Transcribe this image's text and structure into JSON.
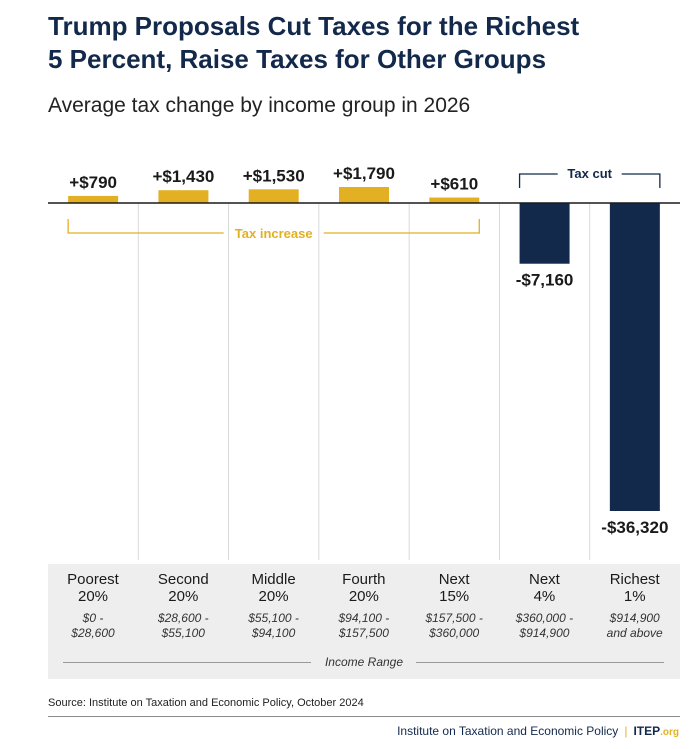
{
  "title": "Trump Proposals Cut Taxes for the Richest\n5 Percent, Raise Taxes for Other Groups",
  "subtitle": "Average tax change by income group in 2026",
  "chart_data": {
    "type": "bar",
    "categories": [
      "Poorest 20%",
      "Second 20%",
      "Middle 20%",
      "Fourth 20%",
      "Next 15%",
      "Next 4%",
      "Richest 1%"
    ],
    "values": [
      790,
      1430,
      1530,
      1790,
      610,
      -7160,
      -36320
    ],
    "data_labels": [
      "+$790",
      "+$1,430",
      "+$1,530",
      "+$1,790",
      "+$610",
      "-$7,160",
      "-$36,320"
    ],
    "annotations": {
      "increase": "Tax increase",
      "cut": "Tax cut"
    },
    "xlabel": "Income Range",
    "ylabel": "",
    "ylim": [
      -36320,
      1790
    ],
    "grid": "vertical separators",
    "colors": {
      "increase": "#e3b023",
      "cut": "#13294b",
      "text": "#1a1a1a",
      "zero_line": "#1a1a1a"
    }
  },
  "groups": [
    {
      "name": "Poorest\n20%",
      "range": "$0 -\n$28,600"
    },
    {
      "name": "Second\n20%",
      "range": "$28,600 -\n$55,100"
    },
    {
      "name": "Middle\n20%",
      "range": "$55,100 -\n$94,100"
    },
    {
      "name": "Fourth\n20%",
      "range": "$94,100 -\n$157,500"
    },
    {
      "name": "Next\n15%",
      "range": "$157,500 -\n$360,000"
    },
    {
      "name": "Next\n4%",
      "range": "$360,000 -\n$914,900"
    },
    {
      "name": "Richest\n1%",
      "range": "$914,900\nand above"
    }
  ],
  "range_label": "Income Range",
  "source": "Source: Institute on Taxation and Economic Policy, October 2024",
  "footer": {
    "org": "Institute on Taxation and Economic Policy",
    "brand": "ITEP",
    "brand_suffix": ".org"
  }
}
